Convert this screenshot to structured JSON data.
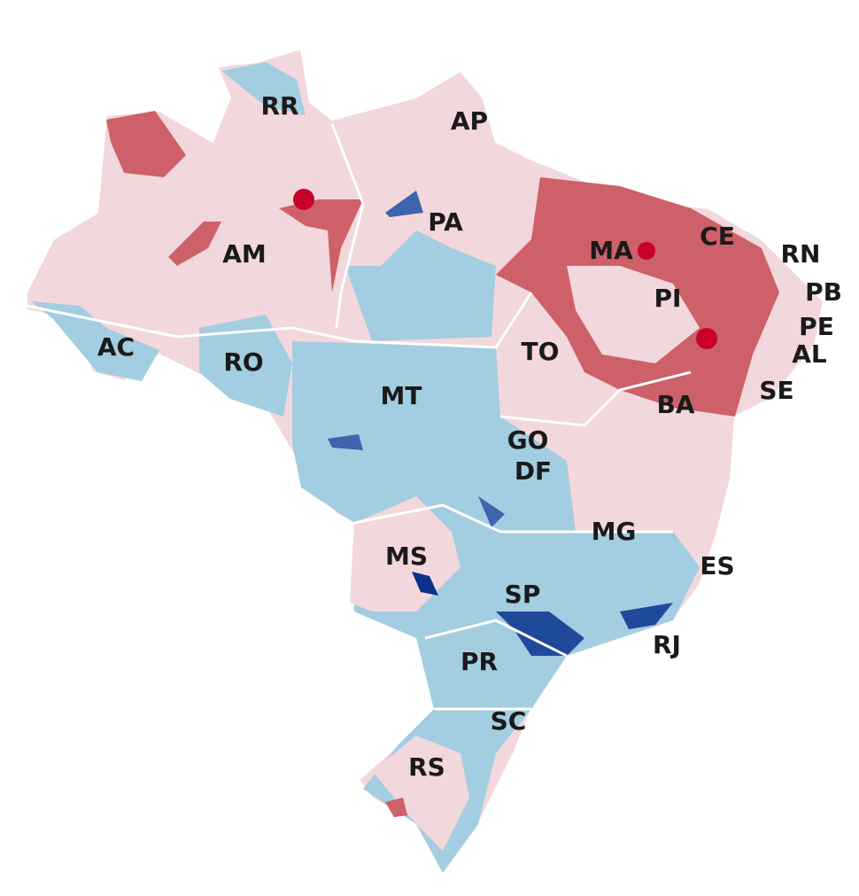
{
  "labels": [
    "RR",
    "AP",
    "PA",
    "AM",
    "MA",
    "CE",
    "RN",
    "PB",
    "PI",
    "PE",
    "AL",
    "AC",
    "RO",
    "TO",
    "SE",
    "MT",
    "BA",
    "GO",
    "DF",
    "MG",
    "MS",
    "ES",
    "SP",
    "RJ",
    "PR",
    "SC",
    "RS"
  ]
}
